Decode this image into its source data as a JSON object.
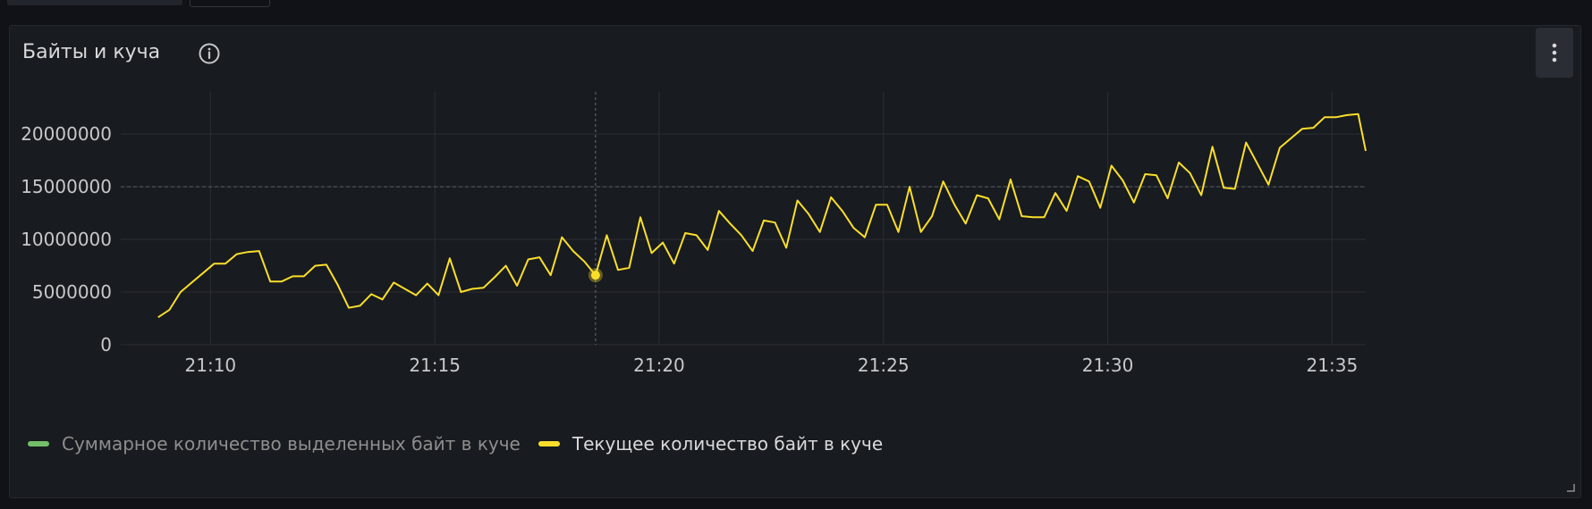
{
  "panel": {
    "title": "Байты и куча",
    "icons": {
      "info": "info-circle-icon",
      "menu": "kebab-menu-icon",
      "resize": "resize-corner-icon"
    }
  },
  "colors": {
    "background": "#111217",
    "panel": "#181b1f",
    "grid": "#2b2e34",
    "text": "#c7c8ca",
    "series_green": "#73bf69",
    "series_yellow": "#fade2a"
  },
  "chart_data": {
    "type": "line",
    "title": "",
    "xlabel": "",
    "ylabel": "",
    "x_ticks": [
      "21:10",
      "21:15",
      "21:20",
      "21:25",
      "21:30",
      "21:35"
    ],
    "y_ticks": [
      "0",
      "5000000",
      "10000000",
      "15000000",
      "20000000"
    ],
    "ylim": [
      0,
      24000000
    ],
    "xlim": [
      "21:08:00",
      "21:35:45"
    ],
    "grid": true,
    "legend": "bottom-left",
    "hover": {
      "x": "21:18:35",
      "y": 6600000,
      "series": "Текущее количество байт в куче"
    },
    "threshold_line_y": 15000000,
    "series": [
      {
        "name": "Суммарное количество выделенных байт в куче",
        "color": "#73bf69",
        "dimmed": true,
        "x": [],
        "values": []
      },
      {
        "name": "Текущее количество байт в куче",
        "color": "#fade2a",
        "dimmed": false,
        "x": [
          "21:08:50",
          "21:09:05",
          "21:09:20",
          "21:09:35",
          "21:09:50",
          "21:10:05",
          "21:10:20",
          "21:10:35",
          "21:10:50",
          "21:11:05",
          "21:11:20",
          "21:11:35",
          "21:11:50",
          "21:12:05",
          "21:12:20",
          "21:12:35",
          "21:12:50",
          "21:13:05",
          "21:13:20",
          "21:13:35",
          "21:13:50",
          "21:14:05",
          "21:14:20",
          "21:14:35",
          "21:14:50",
          "21:15:05",
          "21:15:20",
          "21:15:35",
          "21:15:50",
          "21:16:05",
          "21:16:20",
          "21:16:35",
          "21:16:50",
          "21:17:05",
          "21:17:20",
          "21:17:35",
          "21:17:50",
          "21:18:05",
          "21:18:20",
          "21:18:35",
          "21:18:50",
          "21:19:05",
          "21:19:20",
          "21:19:35",
          "21:19:50",
          "21:20:05",
          "21:20:20",
          "21:20:35",
          "21:20:50",
          "21:21:05",
          "21:21:20",
          "21:21:35",
          "21:21:50",
          "21:22:05",
          "21:22:20",
          "21:22:35",
          "21:22:50",
          "21:23:05",
          "21:23:20",
          "21:23:35",
          "21:23:50",
          "21:24:05",
          "21:24:20",
          "21:24:35",
          "21:24:50",
          "21:25:05",
          "21:25:20",
          "21:25:35",
          "21:25:50",
          "21:26:05",
          "21:26:20",
          "21:26:35",
          "21:26:50",
          "21:27:05",
          "21:27:20",
          "21:27:35",
          "21:27:50",
          "21:28:05",
          "21:28:20",
          "21:28:35",
          "21:28:50",
          "21:29:05",
          "21:29:20",
          "21:29:35",
          "21:29:50",
          "21:30:05",
          "21:30:20",
          "21:30:35",
          "21:30:50",
          "21:31:05",
          "21:31:20",
          "21:31:35",
          "21:31:50",
          "21:32:05",
          "21:32:20",
          "21:32:35",
          "21:32:50",
          "21:33:05",
          "21:33:20",
          "21:33:35",
          "21:33:50",
          "21:34:05",
          "21:34:20",
          "21:34:35",
          "21:34:50",
          "21:35:05",
          "21:35:20",
          "21:35:35",
          "21:35:45"
        ],
        "values": [
          2600000,
          3300000,
          5000000,
          5900000,
          6800000,
          7700000,
          7700000,
          8600000,
          8800000,
          8900000,
          6000000,
          6000000,
          6500000,
          6500000,
          7500000,
          7600000,
          5700000,
          3500000,
          3700000,
          4800000,
          4300000,
          5900000,
          5300000,
          4700000,
          5800000,
          4700000,
          8200000,
          5000000,
          5300000,
          5400000,
          6400000,
          7500000,
          5600000,
          8100000,
          8300000,
          6600000,
          10200000,
          8900000,
          7900000,
          6600000,
          10400000,
          7100000,
          7300000,
          12100000,
          8700000,
          9700000,
          7700000,
          10600000,
          10400000,
          9000000,
          12700000,
          11500000,
          10400000,
          8900000,
          11800000,
          11600000,
          9200000,
          13700000,
          12400000,
          10700000,
          14000000,
          12700000,
          11100000,
          10200000,
          13300000,
          13300000,
          10700000,
          15000000,
          10700000,
          12200000,
          15500000,
          13300000,
          11500000,
          14200000,
          13900000,
          11900000,
          15700000,
          12200000,
          12100000,
          12100000,
          14400000,
          12700000,
          16000000,
          15500000,
          13000000,
          17000000,
          15600000,
          13500000,
          16200000,
          16100000,
          13900000,
          17300000,
          16300000,
          14200000,
          18800000,
          14900000,
          14800000,
          19200000,
          17200000,
          15200000,
          18700000,
          19600000,
          20500000,
          20600000,
          21600000,
          21600000,
          21800000,
          21900000,
          18400000
        ]
      }
    ]
  }
}
